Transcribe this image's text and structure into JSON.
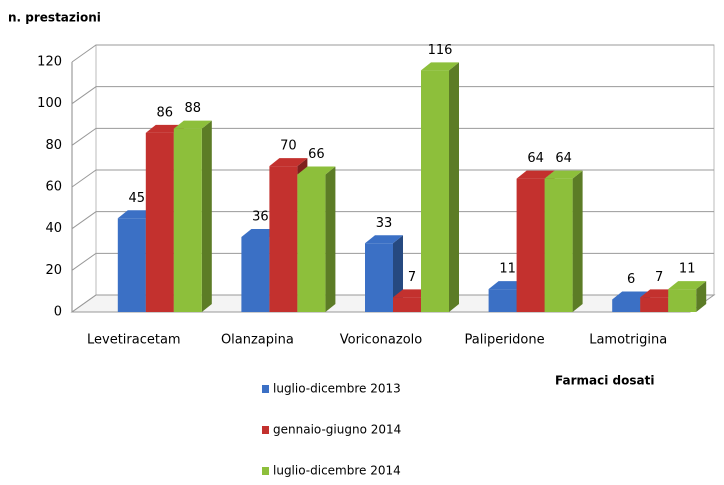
{
  "chart_data": {
    "type": "bar3d",
    "title": "n. prestazioni",
    "x_label": "Farmaci dosati",
    "categories": [
      "Levetiracetam",
      "Olanzapina",
      "Voriconazolo",
      "Paliperidone",
      "Lamotrigina"
    ],
    "series": [
      {
        "name": "luglio-dicembre 2013",
        "color": "#3b70c5",
        "values": [
          45,
          36,
          33,
          11,
          6
        ]
      },
      {
        "name": "gennaio-giugno 2014",
        "color": "#c3312e",
        "values": [
          86,
          70,
          7,
          64,
          7
        ]
      },
      {
        "name": "luglio-dicembre 2014",
        "color": "#8dbf3b",
        "values": [
          88,
          66,
          116,
          64,
          11
        ]
      }
    ],
    "ylim": [
      0,
      120
    ],
    "yticks": [
      0,
      20,
      40,
      60,
      80,
      100,
      120
    ],
    "grid": true
  }
}
